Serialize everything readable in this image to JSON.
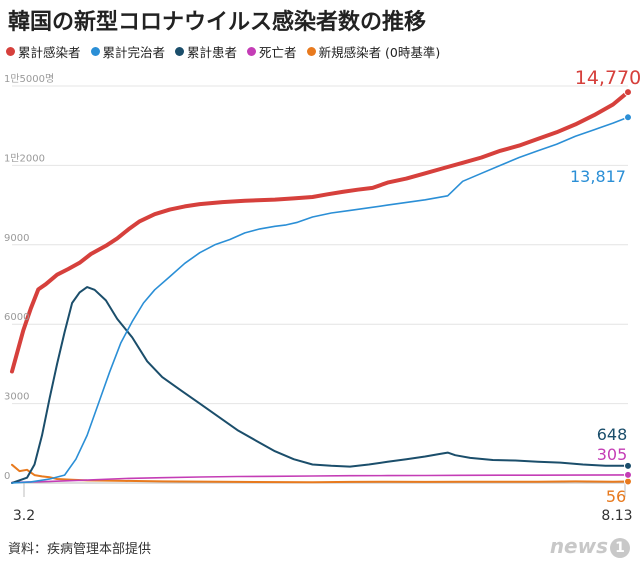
{
  "title": "韓国の新型コロナウイルス感染者数の推移",
  "source": "資料：疾病管理本部提供",
  "logo": {
    "text": "news",
    "badge": "1"
  },
  "chart_data": {
    "type": "line",
    "x_start_label": "3.2",
    "x_end_label": "8.13",
    "y_ticks": [
      {
        "value": 0,
        "label": "0"
      },
      {
        "value": 3000,
        "label": "3000"
      },
      {
        "value": 6000,
        "label": "6000"
      },
      {
        "value": 9000,
        "label": "9000"
      },
      {
        "value": 12000,
        "label": "1만2000"
      },
      {
        "value": 15000,
        "label": "1만5000명"
      }
    ],
    "ylim": [
      0,
      15000
    ],
    "xlim": [
      0,
      164
    ],
    "grid": true,
    "legend_position": "top-left",
    "series": [
      {
        "name": "累計感染者",
        "color": "#d6403c",
        "end_label": "14,770",
        "points": [
          [
            0,
            4212
          ],
          [
            3,
            5766
          ],
          [
            5,
            6593
          ],
          [
            7,
            7313
          ],
          [
            9,
            7513
          ],
          [
            12,
            7869
          ],
          [
            15,
            8086
          ],
          [
            18,
            8320
          ],
          [
            21,
            8652
          ],
          [
            25,
            8961
          ],
          [
            28,
            9241
          ],
          [
            31,
            9583
          ],
          [
            34,
            9887
          ],
          [
            38,
            10156
          ],
          [
            42,
            10331
          ],
          [
            46,
            10450
          ],
          [
            50,
            10537
          ],
          [
            56,
            10613
          ],
          [
            62,
            10661
          ],
          [
            70,
            10708
          ],
          [
            75,
            10752
          ],
          [
            80,
            10806
          ],
          [
            84,
            10909
          ],
          [
            88,
            11000
          ],
          [
            92,
            11080
          ],
          [
            96,
            11150
          ],
          [
            100,
            11350
          ],
          [
            105,
            11500
          ],
          [
            110,
            11700
          ],
          [
            115,
            11900
          ],
          [
            120,
            12100
          ],
          [
            125,
            12300
          ],
          [
            130,
            12550
          ],
          [
            135,
            12750
          ],
          [
            140,
            13000
          ],
          [
            145,
            13250
          ],
          [
            150,
            13550
          ],
          [
            155,
            13900
          ],
          [
            160,
            14300
          ],
          [
            164,
            14770
          ]
        ]
      },
      {
        "name": "累計完治者",
        "color": "#2b8fd6",
        "end_label": "13,817",
        "points": [
          [
            0,
            0
          ],
          [
            5,
            40
          ],
          [
            10,
            150
          ],
          [
            14,
            300
          ],
          [
            17,
            900
          ],
          [
            20,
            1800
          ],
          [
            23,
            3000
          ],
          [
            26,
            4200
          ],
          [
            29,
            5300
          ],
          [
            32,
            6100
          ],
          [
            35,
            6800
          ],
          [
            38,
            7300
          ],
          [
            42,
            7800
          ],
          [
            46,
            8300
          ],
          [
            50,
            8700
          ],
          [
            54,
            9000
          ],
          [
            58,
            9200
          ],
          [
            62,
            9450
          ],
          [
            66,
            9600
          ],
          [
            70,
            9700
          ],
          [
            73,
            9750
          ],
          [
            76,
            9850
          ],
          [
            80,
            10050
          ],
          [
            85,
            10200
          ],
          [
            90,
            10300
          ],
          [
            100,
            10500
          ],
          [
            110,
            10700
          ],
          [
            116,
            10850
          ],
          [
            120,
            11400
          ],
          [
            125,
            11700
          ],
          [
            130,
            12000
          ],
          [
            135,
            12300
          ],
          [
            140,
            12550
          ],
          [
            145,
            12800
          ],
          [
            150,
            13100
          ],
          [
            155,
            13350
          ],
          [
            160,
            13600
          ],
          [
            164,
            13817
          ]
        ]
      },
      {
        "name": "累計患者",
        "color": "#1b4e6b",
        "end_label": "648",
        "points": [
          [
            0,
            0
          ],
          [
            4,
            200
          ],
          [
            6,
            700
          ],
          [
            8,
            1800
          ],
          [
            10,
            3200
          ],
          [
            12,
            4500
          ],
          [
            14,
            5700
          ],
          [
            16,
            6800
          ],
          [
            18,
            7200
          ],
          [
            20,
            7400
          ],
          [
            22,
            7300
          ],
          [
            25,
            6900
          ],
          [
            28,
            6200
          ],
          [
            32,
            5500
          ],
          [
            36,
            4600
          ],
          [
            40,
            4000
          ],
          [
            45,
            3500
          ],
          [
            50,
            3000
          ],
          [
            55,
            2500
          ],
          [
            60,
            2000
          ],
          [
            65,
            1600
          ],
          [
            70,
            1200
          ],
          [
            75,
            900
          ],
          [
            80,
            700
          ],
          [
            85,
            650
          ],
          [
            90,
            620
          ],
          [
            95,
            700
          ],
          [
            100,
            800
          ],
          [
            105,
            900
          ],
          [
            110,
            1000
          ],
          [
            114,
            1100
          ],
          [
            116,
            1150
          ],
          [
            118,
            1050
          ],
          [
            122,
            950
          ],
          [
            128,
            870
          ],
          [
            134,
            850
          ],
          [
            140,
            800
          ],
          [
            146,
            770
          ],
          [
            152,
            700
          ],
          [
            158,
            650
          ],
          [
            164,
            648
          ]
        ]
      },
      {
        "name": "死亡者",
        "color": "#c43db6",
        "end_label": "305",
        "points": [
          [
            0,
            22
          ],
          [
            10,
            60
          ],
          [
            20,
            110
          ],
          [
            30,
            170
          ],
          [
            40,
            200
          ],
          [
            50,
            225
          ],
          [
            60,
            245
          ],
          [
            70,
            255
          ],
          [
            80,
            265
          ],
          [
            90,
            275
          ],
          [
            100,
            280
          ],
          [
            110,
            285
          ],
          [
            120,
            290
          ],
          [
            130,
            293
          ],
          [
            140,
            296
          ],
          [
            150,
            299
          ],
          [
            164,
            305
          ]
        ]
      },
      {
        "name": "新規感染者 (0時基準)",
        "color": "#e87a1e",
        "end_label": "56",
        "points": [
          [
            0,
            686
          ],
          [
            2,
            450
          ],
          [
            4,
            500
          ],
          [
            6,
            300
          ],
          [
            8,
            250
          ],
          [
            10,
            220
          ],
          [
            12,
            150
          ],
          [
            16,
            120
          ],
          [
            20,
            100
          ],
          [
            30,
            80
          ],
          [
            40,
            60
          ],
          [
            60,
            40
          ],
          [
            80,
            30
          ],
          [
            90,
            40
          ],
          [
            100,
            50
          ],
          [
            110,
            40
          ],
          [
            120,
            50
          ],
          [
            130,
            45
          ],
          [
            140,
            50
          ],
          [
            150,
            60
          ],
          [
            160,
            45
          ],
          [
            164,
            56
          ]
        ]
      }
    ]
  }
}
